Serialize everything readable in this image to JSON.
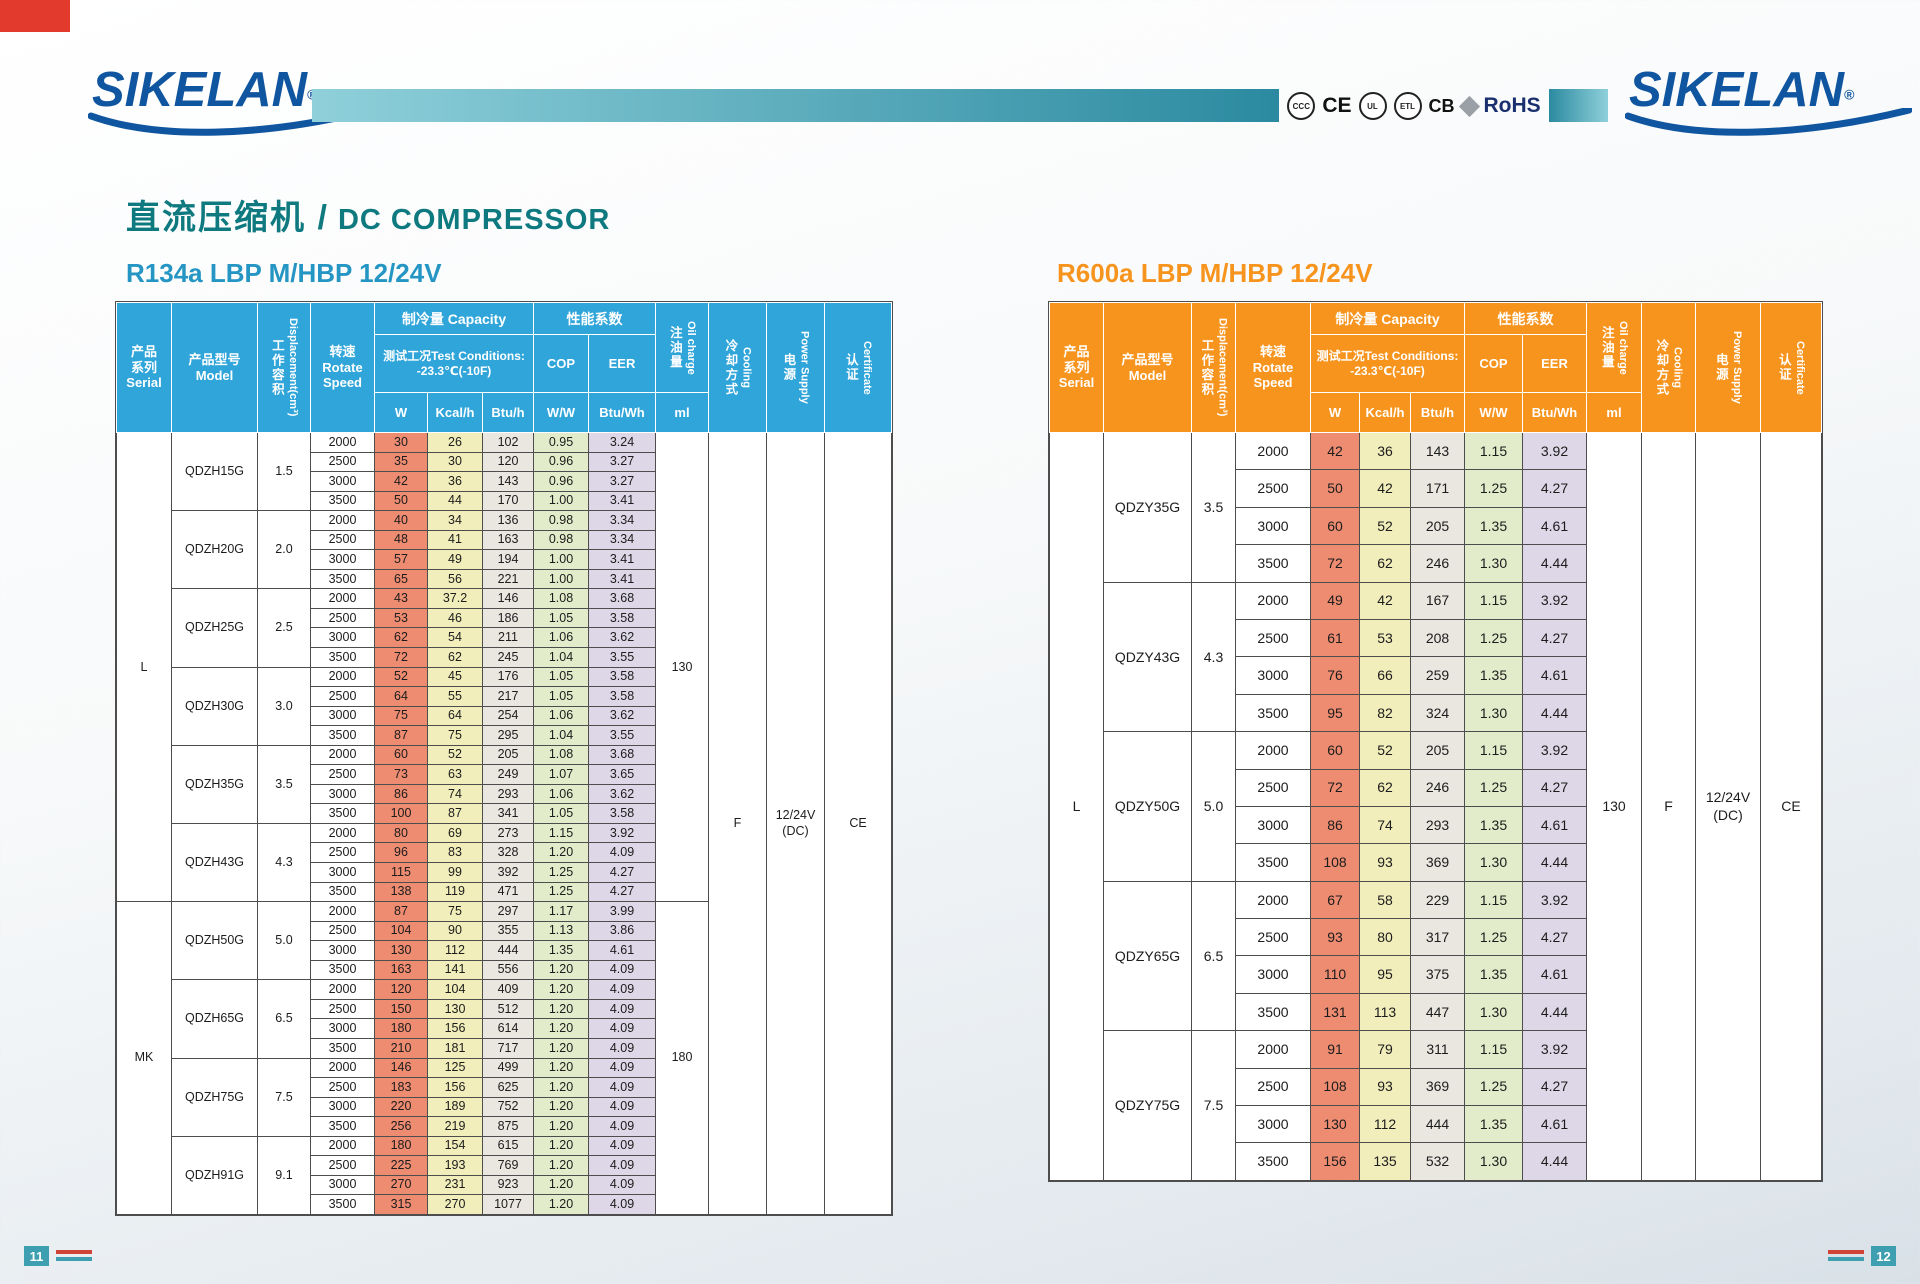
{
  "page": {
    "brand": "SIKELAN",
    "brand_reg": "®",
    "title_cn": "直流压缩机 /",
    "title_en": " DC COMPRESSOR",
    "cert_marks": [
      "CCC",
      "CE",
      "UL",
      "ETL",
      "CB",
      "RoHS"
    ],
    "page_left": "11",
    "page_right": "12"
  },
  "palette": {
    "page_red": "#e23b2e",
    "brand_blue": "#10559f",
    "band_teal_light": "#8fd0da",
    "band_teal_dark": "#2b8aa0",
    "title_teal": "#0e7a80",
    "rohs_navy": "#1a2f6e",
    "footer_teal": "#3e9fb0",
    "border_dark": "#4d4d4d",
    "col_w": "#ee8c72",
    "col_kcal": "#f1eebb",
    "col_btu": "#eae7e0",
    "col_cop": "#e3ecca",
    "col_eer": "#ddd7e7"
  },
  "headers": {
    "serial_lines": [
      "产品",
      "系列",
      "Serial"
    ],
    "model_lines": [
      "产品型号",
      "Model"
    ],
    "disp_cn": "工作容积",
    "disp_en": "Displacement(cm³)",
    "speed_lines": [
      "转速",
      "Rotate",
      "Speed"
    ],
    "capacity": "制冷量 Capacity",
    "performance": "性能系数",
    "conditions_lines": [
      "测试工况Test Conditions:",
      "-23.3℃(-10F)"
    ],
    "cop": "COP",
    "eer": "EER",
    "unit_w": "W",
    "unit_kcal": "Kcal/h",
    "unit_btu": "Btu/h",
    "unit_ww": "W/W",
    "unit_btuwh": "Btu/Wh",
    "unit_ml": "ml",
    "oil_cn": "注油量",
    "oil_en": "Oil charge",
    "cooling_cn": "冷却方式",
    "cooling_en": "Cooling",
    "power_cn": "电源",
    "power_en": "Power Supply",
    "cert_cn": "认证",
    "cert_en": "Certificate"
  },
  "tables": [
    {
      "name": "spec-table-r134a",
      "subtitle": "R134a  LBP M/HBP 12/24V",
      "title_color": "#2596c4",
      "accent": "#30a5da",
      "theme": "t-r134a",
      "serial_groups": [
        {
          "label": "L",
          "models": 6
        },
        {
          "label": "MK",
          "models": 4
        }
      ],
      "oil_groups": [
        {
          "label": "130",
          "models": 6
        },
        {
          "label": "180",
          "models": 4
        }
      ],
      "cooling": "F",
      "power_lines": [
        "12/24V",
        "(DC)"
      ],
      "certificate": "CE",
      "models": [
        {
          "model": "QDZH15G",
          "displacement": "1.5",
          "rows": [
            [
              "2000",
              "30",
              "26",
              "102",
              "0.95",
              "3.24"
            ],
            [
              "2500",
              "35",
              "30",
              "120",
              "0.96",
              "3.27"
            ],
            [
              "3000",
              "42",
              "36",
              "143",
              "0.96",
              "3.27"
            ],
            [
              "3500",
              "50",
              "44",
              "170",
              "1.00",
              "3.41"
            ]
          ]
        },
        {
          "model": "QDZH20G",
          "displacement": "2.0",
          "rows": [
            [
              "2000",
              "40",
              "34",
              "136",
              "0.98",
              "3.34"
            ],
            [
              "2500",
              "48",
              "41",
              "163",
              "0.98",
              "3.34"
            ],
            [
              "3000",
              "57",
              "49",
              "194",
              "1.00",
              "3.41"
            ],
            [
              "3500",
              "65",
              "56",
              "221",
              "1.00",
              "3.41"
            ]
          ]
        },
        {
          "model": "QDZH25G",
          "displacement": "2.5",
          "rows": [
            [
              "2000",
              "43",
              "37.2",
              "146",
              "1.08",
              "3.68"
            ],
            [
              "2500",
              "53",
              "46",
              "186",
              "1.05",
              "3.58"
            ],
            [
              "3000",
              "62",
              "54",
              "211",
              "1.06",
              "3.62"
            ],
            [
              "3500",
              "72",
              "62",
              "245",
              "1.04",
              "3.55"
            ]
          ]
        },
        {
          "model": "QDZH30G",
          "displacement": "3.0",
          "rows": [
            [
              "2000",
              "52",
              "45",
              "176",
              "1.05",
              "3.58"
            ],
            [
              "2500",
              "64",
              "55",
              "217",
              "1.05",
              "3.58"
            ],
            [
              "3000",
              "75",
              "64",
              "254",
              "1.06",
              "3.62"
            ],
            [
              "3500",
              "87",
              "75",
              "295",
              "1.04",
              "3.55"
            ]
          ]
        },
        {
          "model": "QDZH35G",
          "displacement": "3.5",
          "rows": [
            [
              "2000",
              "60",
              "52",
              "205",
              "1.08",
              "3.68"
            ],
            [
              "2500",
              "73",
              "63",
              "249",
              "1.07",
              "3.65"
            ],
            [
              "3000",
              "86",
              "74",
              "293",
              "1.06",
              "3.62"
            ],
            [
              "3500",
              "100",
              "87",
              "341",
              "1.05",
              "3.58"
            ]
          ]
        },
        {
          "model": "QDZH43G",
          "displacement": "4.3",
          "rows": [
            [
              "2000",
              "80",
              "69",
              "273",
              "1.15",
              "3.92"
            ],
            [
              "2500",
              "96",
              "83",
              "328",
              "1.20",
              "4.09"
            ],
            [
              "3000",
              "115",
              "99",
              "392",
              "1.25",
              "4.27"
            ],
            [
              "3500",
              "138",
              "119",
              "471",
              "1.25",
              "4.27"
            ]
          ]
        },
        {
          "model": "QDZH50G",
          "displacement": "5.0",
          "rows": [
            [
              "2000",
              "87",
              "75",
              "297",
              "1.17",
              "3.99"
            ],
            [
              "2500",
              "104",
              "90",
              "355",
              "1.13",
              "3.86"
            ],
            [
              "3000",
              "130",
              "112",
              "444",
              "1.35",
              "4.61"
            ],
            [
              "3500",
              "163",
              "141",
              "556",
              "1.20",
              "4.09"
            ]
          ]
        },
        {
          "model": "QDZH65G",
          "displacement": "6.5",
          "rows": [
            [
              "2000",
              "120",
              "104",
              "409",
              "1.20",
              "4.09"
            ],
            [
              "2500",
              "150",
              "130",
              "512",
              "1.20",
              "4.09"
            ],
            [
              "3000",
              "180",
              "156",
              "614",
              "1.20",
              "4.09"
            ],
            [
              "3500",
              "210",
              "181",
              "717",
              "1.20",
              "4.09"
            ]
          ]
        },
        {
          "model": "QDZH75G",
          "displacement": "7.5",
          "rows": [
            [
              "2000",
              "146",
              "125",
              "499",
              "1.20",
              "4.09"
            ],
            [
              "2500",
              "183",
              "156",
              "625",
              "1.20",
              "4.09"
            ],
            [
              "3000",
              "220",
              "189",
              "752",
              "1.20",
              "4.09"
            ],
            [
              "3500",
              "256",
              "219",
              "875",
              "1.20",
              "4.09"
            ]
          ]
        },
        {
          "model": "QDZH91G",
          "displacement": "9.1",
          "rows": [
            [
              "2000",
              "180",
              "154",
              "615",
              "1.20",
              "4.09"
            ],
            [
              "2500",
              "225",
              "193",
              "769",
              "1.20",
              "4.09"
            ],
            [
              "3000",
              "270",
              "231",
              "923",
              "1.20",
              "4.09"
            ],
            [
              "3500",
              "315",
              "270",
              "1077",
              "1.20",
              "4.09"
            ]
          ]
        }
      ]
    },
    {
      "name": "spec-table-r600a",
      "subtitle": "R600a  LBP M/HBP 12/24V",
      "title_color": "#f7941e",
      "accent": "#f7941e",
      "theme": "t-r600a",
      "serial_groups": [
        {
          "label": "L",
          "models": 5
        }
      ],
      "oil_groups": [
        {
          "label": "130",
          "models": 5
        }
      ],
      "cooling": "F",
      "power_lines": [
        "12/24V",
        "(DC)"
      ],
      "certificate": "CE",
      "models": [
        {
          "model": "QDZY35G",
          "displacement": "3.5",
          "rows": [
            [
              "2000",
              "42",
              "36",
              "143",
              "1.15",
              "3.92"
            ],
            [
              "2500",
              "50",
              "42",
              "171",
              "1.25",
              "4.27"
            ],
            [
              "3000",
              "60",
              "52",
              "205",
              "1.35",
              "4.61"
            ],
            [
              "3500",
              "72",
              "62",
              "246",
              "1.30",
              "4.44"
            ]
          ]
        },
        {
          "model": "QDZY43G",
          "displacement": "4.3",
          "rows": [
            [
              "2000",
              "49",
              "42",
              "167",
              "1.15",
              "3.92"
            ],
            [
              "2500",
              "61",
              "53",
              "208",
              "1.25",
              "4.27"
            ],
            [
              "3000",
              "76",
              "66",
              "259",
              "1.35",
              "4.61"
            ],
            [
              "3500",
              "95",
              "82",
              "324",
              "1.30",
              "4.44"
            ]
          ]
        },
        {
          "model": "QDZY50G",
          "displacement": "5.0",
          "rows": [
            [
              "2000",
              "60",
              "52",
              "205",
              "1.15",
              "3.92"
            ],
            [
              "2500",
              "72",
              "62",
              "246",
              "1.25",
              "4.27"
            ],
            [
              "3000",
              "86",
              "74",
              "293",
              "1.35",
              "4.61"
            ],
            [
              "3500",
              "108",
              "93",
              "369",
              "1.30",
              "4.44"
            ]
          ]
        },
        {
          "model": "QDZY65G",
          "displacement": "6.5",
          "rows": [
            [
              "2000",
              "67",
              "58",
              "229",
              "1.15",
              "3.92"
            ],
            [
              "2500",
              "93",
              "80",
              "317",
              "1.25",
              "4.27"
            ],
            [
              "3000",
              "110",
              "95",
              "375",
              "1.35",
              "4.61"
            ],
            [
              "3500",
              "131",
              "113",
              "447",
              "1.30",
              "4.44"
            ]
          ]
        },
        {
          "model": "QDZY75G",
          "displacement": "7.5",
          "rows": [
            [
              "2000",
              "91",
              "79",
              "311",
              "1.15",
              "3.92"
            ],
            [
              "2500",
              "108",
              "93",
              "369",
              "1.25",
              "4.27"
            ],
            [
              "3000",
              "130",
              "112",
              "444",
              "1.35",
              "4.61"
            ],
            [
              "3500",
              "156",
              "135",
              "532",
              "1.30",
              "4.44"
            ]
          ]
        }
      ]
    }
  ]
}
